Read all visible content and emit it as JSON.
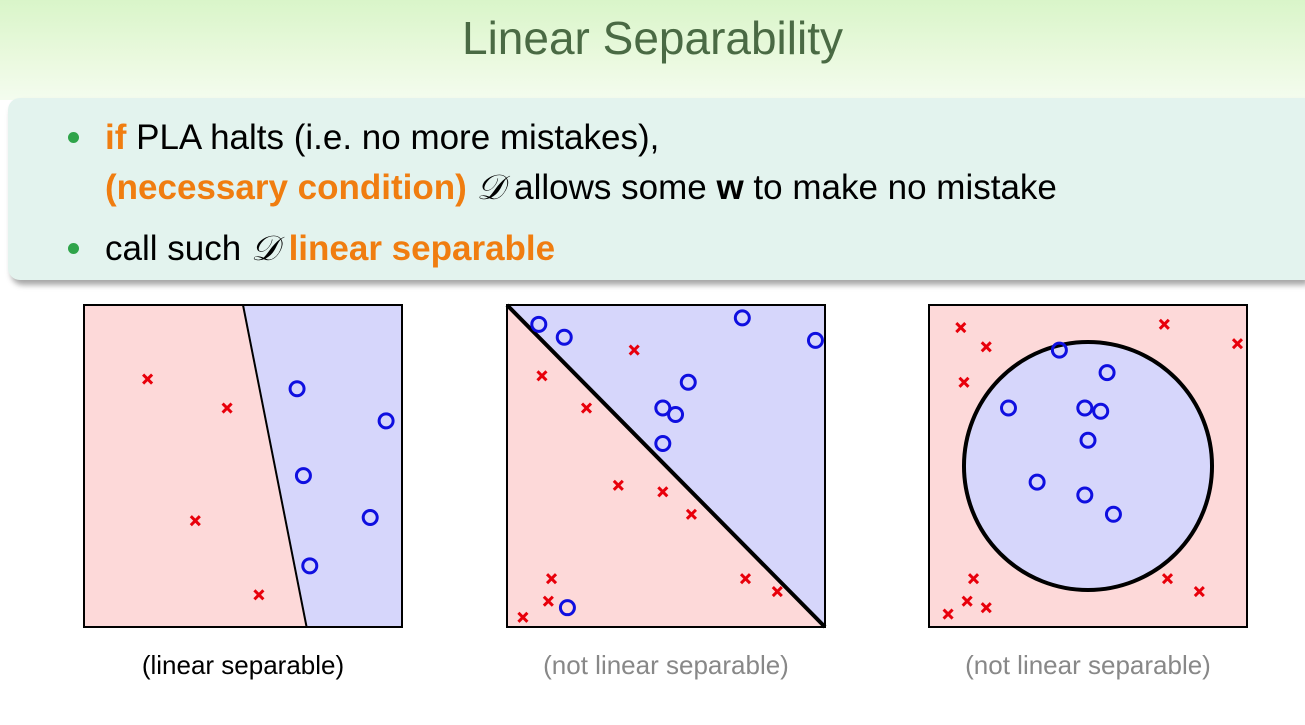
{
  "slide": {
    "title": "Linear Separability",
    "bullets": [
      {
        "lines": [
          {
            "segments": [
              {
                "text": "if",
                "style": "orange"
              },
              {
                "text": " PLA halts (i.e. no more mistakes),",
                "style": "normal"
              }
            ]
          },
          {
            "segments": [
              {
                "text": "(necessary condition)",
                "style": "orange"
              },
              {
                "text": " ",
                "style": "normal"
              },
              {
                "text": "D",
                "style": "math"
              },
              {
                "text": " allows some ",
                "style": "normal"
              },
              {
                "text": "w",
                "style": "bold"
              },
              {
                "text": " to make no mistake",
                "style": "normal"
              }
            ]
          }
        ]
      },
      {
        "lines": [
          {
            "segments": [
              {
                "text": "call such ",
                "style": "normal"
              },
              {
                "text": "D",
                "style": "math"
              },
              {
                "text": " ",
                "style": "normal"
              },
              {
                "text": "linear separable",
                "style": "orange"
              }
            ]
          }
        ]
      }
    ]
  },
  "colors": {
    "accent_orange": "#f07d10",
    "bullet_green": "#2fa44a",
    "region_red": "#fdd9d9",
    "region_blue": "#d6d6fb",
    "cross_red": "#e8000b",
    "circle_blue": "#0f0fe0"
  },
  "panels": [
    {
      "caption": "(linear separable)",
      "caption_color": "#000000",
      "boundary": {
        "type": "line",
        "points": [
          [
            0.5,
            1.0
          ],
          [
            0.7,
            0.0
          ]
        ]
      },
      "crosses": [
        [
          0.2,
          0.77
        ],
        [
          0.45,
          0.68
        ],
        [
          0.35,
          0.33
        ],
        [
          0.55,
          0.1
        ]
      ],
      "circles": [
        [
          0.67,
          0.74
        ],
        [
          0.95,
          0.64
        ],
        [
          0.69,
          0.47
        ],
        [
          0.9,
          0.34
        ],
        [
          0.71,
          0.19
        ]
      ]
    },
    {
      "caption": "(not linear separable)",
      "caption_color": "#888888",
      "boundary": {
        "type": "line",
        "points": [
          [
            0.0,
            1.0
          ],
          [
            1.0,
            0.0
          ]
        ]
      },
      "crosses": [
        [
          0.11,
          0.78
        ],
        [
          0.4,
          0.86
        ],
        [
          0.25,
          0.68
        ],
        [
          0.35,
          0.44
        ],
        [
          0.49,
          0.42
        ],
        [
          0.58,
          0.35
        ],
        [
          0.14,
          0.15
        ],
        [
          0.13,
          0.08
        ],
        [
          0.05,
          0.03
        ],
        [
          0.75,
          0.15
        ],
        [
          0.85,
          0.11
        ]
      ],
      "circles": [
        [
          0.1,
          0.94
        ],
        [
          0.18,
          0.9
        ],
        [
          0.74,
          0.96
        ],
        [
          0.97,
          0.89
        ],
        [
          0.57,
          0.76
        ],
        [
          0.49,
          0.68
        ],
        [
          0.53,
          0.66
        ],
        [
          0.49,
          0.57
        ],
        [
          0.19,
          0.06
        ]
      ]
    },
    {
      "caption": "(not linear separable)",
      "caption_color": "#888888",
      "boundary": {
        "type": "circle",
        "center": [
          0.5,
          0.5
        ],
        "radius": 0.39
      },
      "crosses": [
        [
          0.1,
          0.93
        ],
        [
          0.18,
          0.87
        ],
        [
          0.11,
          0.76
        ],
        [
          0.74,
          0.94
        ],
        [
          0.97,
          0.88
        ],
        [
          0.14,
          0.15
        ],
        [
          0.12,
          0.08
        ],
        [
          0.18,
          0.06
        ],
        [
          0.06,
          0.04
        ],
        [
          0.75,
          0.15
        ],
        [
          0.85,
          0.11
        ]
      ],
      "circles": [
        [
          0.41,
          0.86
        ],
        [
          0.56,
          0.79
        ],
        [
          0.25,
          0.68
        ],
        [
          0.49,
          0.68
        ],
        [
          0.54,
          0.67
        ],
        [
          0.5,
          0.58
        ],
        [
          0.34,
          0.45
        ],
        [
          0.49,
          0.41
        ],
        [
          0.58,
          0.35
        ]
      ]
    }
  ]
}
